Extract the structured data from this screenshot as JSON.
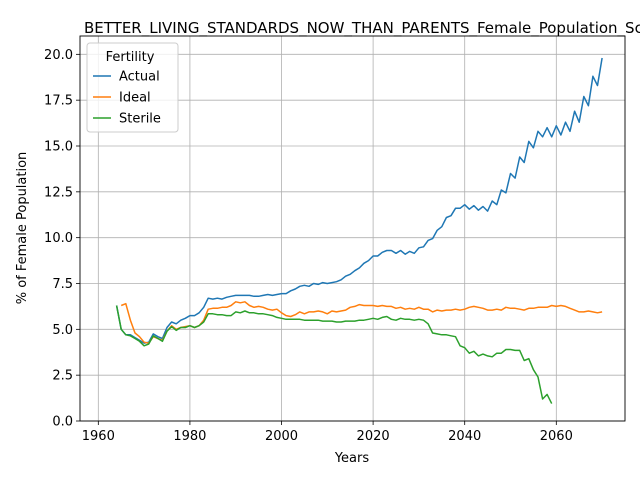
{
  "chart_data": {
    "type": "line",
    "title": "BETTER_LIVING_STANDARDS_NOW_THAN_PARENTS_Female_Population_Sco",
    "xlabel": "Years",
    "ylabel": "% of Female Population",
    "xlim": [
      1956,
      2075
    ],
    "ylim": [
      0,
      21
    ],
    "xticks": [
      1960,
      1980,
      2000,
      2020,
      2040,
      2060
    ],
    "yticks": [
      0.0,
      2.5,
      5.0,
      7.5,
      10.0,
      12.5,
      15.0,
      17.5,
      20.0
    ],
    "xtick_labels": [
      "1960",
      "1980",
      "2000",
      "2020",
      "2040",
      "2060"
    ],
    "ytick_labels": [
      "0.0",
      "2.5",
      "5.0",
      "7.5",
      "10.0",
      "12.5",
      "15.0",
      "17.5",
      "20.0"
    ],
    "grid": true,
    "legend": {
      "title": "Fertility",
      "placement": "upper left"
    },
    "series": [
      {
        "name": "Actual",
        "color": "#1f77b4",
        "x": [
          1964,
          1965,
          1966,
          1967,
          1968,
          1969,
          1970,
          1971,
          1972,
          1973,
          1974,
          1975,
          1976,
          1977,
          1978,
          1979,
          1980,
          1981,
          1982,
          1983,
          1984,
          1985,
          1986,
          1987,
          1988,
          1989,
          1990,
          1991,
          1992,
          1993,
          1994,
          1995,
          1996,
          1997,
          1998,
          1999,
          2000,
          2001,
          2002,
          2003,
          2004,
          2005,
          2006,
          2007,
          2008,
          2009,
          2010,
          2011,
          2012,
          2013,
          2014,
          2015,
          2016,
          2017,
          2018,
          2019,
          2020,
          2021,
          2022,
          2023,
          2024,
          2025,
          2026,
          2027,
          2028,
          2029,
          2030,
          2031,
          2032,
          2033,
          2034,
          2035,
          2036,
          2037,
          2038,
          2039,
          2040,
          2041,
          2042,
          2043,
          2044,
          2045,
          2046,
          2047,
          2048,
          2049,
          2050,
          2051,
          2052,
          2053,
          2054,
          2055,
          2056,
          2057,
          2058,
          2059,
          2060,
          2061,
          2062,
          2063,
          2064,
          2065,
          2066,
          2067,
          2068,
          2069,
          2070
        ],
        "y": [
          6.3,
          5.0,
          4.7,
          4.7,
          4.55,
          4.4,
          4.25,
          4.3,
          4.75,
          4.6,
          4.5,
          5.1,
          5.4,
          5.3,
          5.5,
          5.6,
          5.75,
          5.75,
          5.9,
          6.2,
          6.7,
          6.65,
          6.7,
          6.65,
          6.75,
          6.8,
          6.85,
          6.85,
          6.85,
          6.85,
          6.8,
          6.8,
          6.85,
          6.9,
          6.85,
          6.9,
          6.95,
          6.95,
          7.1,
          7.2,
          7.35,
          7.4,
          7.35,
          7.5,
          7.45,
          7.55,
          7.5,
          7.55,
          7.6,
          7.7,
          7.9,
          8.0,
          8.2,
          8.35,
          8.6,
          8.75,
          9.0,
          9.0,
          9.2,
          9.3,
          9.3,
          9.15,
          9.3,
          9.1,
          9.25,
          9.15,
          9.45,
          9.5,
          9.85,
          9.95,
          10.4,
          10.6,
          11.1,
          11.2,
          11.6,
          11.6,
          11.8,
          11.55,
          11.75,
          11.5,
          11.7,
          11.45,
          12.0,
          11.8,
          12.6,
          12.45,
          13.5,
          13.25,
          14.4,
          14.1,
          15.25,
          14.9,
          15.8,
          15.5,
          16.0,
          15.5,
          16.1,
          15.6,
          16.3,
          15.8,
          16.9,
          16.3,
          17.7,
          17.2,
          18.8,
          18.3,
          19.8
        ]
      },
      {
        "name": "Ideal",
        "color": "#ff7f0e",
        "x": [
          1965,
          1966,
          1967,
          1968,
          1969,
          1970,
          1971,
          1972,
          1973,
          1974,
          1975,
          1976,
          1977,
          1978,
          1979,
          1980,
          1981,
          1982,
          1983,
          1984,
          1985,
          1986,
          1987,
          1988,
          1989,
          1990,
          1991,
          1992,
          1993,
          1994,
          1995,
          1996,
          1997,
          1998,
          1999,
          2000,
          2001,
          2002,
          2003,
          2004,
          2005,
          2006,
          2007,
          2008,
          2009,
          2010,
          2011,
          2012,
          2013,
          2014,
          2015,
          2016,
          2017,
          2018,
          2019,
          2020,
          2021,
          2022,
          2023,
          2024,
          2025,
          2026,
          2027,
          2028,
          2029,
          2030,
          2031,
          2032,
          2033,
          2034,
          2035,
          2036,
          2037,
          2038,
          2039,
          2040,
          2041,
          2042,
          2043,
          2044,
          2045,
          2046,
          2047,
          2048,
          2049,
          2050,
          2051,
          2052,
          2053,
          2054,
          2055,
          2056,
          2057,
          2058,
          2059,
          2060,
          2061,
          2062,
          2063,
          2064,
          2065,
          2066,
          2067,
          2068,
          2069,
          2070
        ],
        "y": [
          6.3,
          6.4,
          5.5,
          4.8,
          4.6,
          4.3,
          4.25,
          4.6,
          4.5,
          4.4,
          4.9,
          5.2,
          5.0,
          5.1,
          5.15,
          5.2,
          5.1,
          5.2,
          5.5,
          6.1,
          6.15,
          6.15,
          6.2,
          6.2,
          6.3,
          6.5,
          6.45,
          6.5,
          6.3,
          6.2,
          6.25,
          6.2,
          6.1,
          6.05,
          6.1,
          5.9,
          5.75,
          5.7,
          5.8,
          5.95,
          5.85,
          5.95,
          5.95,
          6.0,
          5.95,
          5.85,
          6.0,
          5.95,
          6.0,
          6.05,
          6.2,
          6.25,
          6.35,
          6.3,
          6.3,
          6.3,
          6.25,
          6.3,
          6.25,
          6.25,
          6.15,
          6.2,
          6.1,
          6.15,
          6.1,
          6.2,
          6.1,
          6.1,
          5.95,
          6.05,
          6.0,
          6.05,
          6.05,
          6.1,
          6.05,
          6.1,
          6.2,
          6.25,
          6.2,
          6.15,
          6.05,
          6.05,
          6.1,
          6.05,
          6.2,
          6.15,
          6.15,
          6.1,
          6.05,
          6.15,
          6.15,
          6.2,
          6.2,
          6.2,
          6.3,
          6.25,
          6.3,
          6.25,
          6.15,
          6.05,
          5.95,
          5.95,
          6.0,
          5.95,
          5.9,
          5.95
        ]
      },
      {
        "name": "Sterile",
        "color": "#2ca02c",
        "x": [
          1964,
          1965,
          1966,
          1967,
          1968,
          1969,
          1970,
          1971,
          1972,
          1973,
          1974,
          1975,
          1976,
          1977,
          1978,
          1979,
          1980,
          1981,
          1982,
          1983,
          1984,
          1985,
          1986,
          1987,
          1988,
          1989,
          1990,
          1991,
          1992,
          1993,
          1994,
          1995,
          1996,
          1997,
          1998,
          1999,
          2000,
          2001,
          2002,
          2003,
          2004,
          2005,
          2006,
          2007,
          2008,
          2009,
          2010,
          2011,
          2012,
          2013,
          2014,
          2015,
          2016,
          2017,
          2018,
          2019,
          2020,
          2021,
          2022,
          2023,
          2024,
          2025,
          2026,
          2027,
          2028,
          2029,
          2030,
          2031,
          2032,
          2033,
          2034,
          2035,
          2036,
          2037,
          2038,
          2039,
          2040,
          2041,
          2042,
          2043,
          2044,
          2045,
          2046,
          2047,
          2048,
          2049,
          2050,
          2051,
          2052,
          2053,
          2054,
          2055,
          2056,
          2057,
          2058,
          2059
        ],
        "y": [
          6.3,
          5.0,
          4.7,
          4.65,
          4.5,
          4.35,
          4.1,
          4.2,
          4.65,
          4.5,
          4.35,
          4.9,
          5.15,
          4.95,
          5.1,
          5.1,
          5.2,
          5.1,
          5.2,
          5.4,
          5.85,
          5.85,
          5.8,
          5.8,
          5.75,
          5.75,
          5.95,
          5.9,
          6.0,
          5.9,
          5.9,
          5.85,
          5.85,
          5.8,
          5.75,
          5.65,
          5.6,
          5.55,
          5.55,
          5.55,
          5.55,
          5.5,
          5.5,
          5.5,
          5.5,
          5.45,
          5.45,
          5.45,
          5.4,
          5.4,
          5.45,
          5.45,
          5.45,
          5.5,
          5.5,
          5.55,
          5.6,
          5.55,
          5.65,
          5.7,
          5.55,
          5.5,
          5.6,
          5.55,
          5.55,
          5.5,
          5.55,
          5.5,
          5.3,
          4.8,
          4.75,
          4.7,
          4.7,
          4.65,
          4.6,
          4.1,
          4.0,
          3.7,
          3.8,
          3.55,
          3.65,
          3.55,
          3.5,
          3.7,
          3.7,
          3.9,
          3.9,
          3.85,
          3.85,
          3.3,
          3.4,
          2.8,
          2.4,
          1.2,
          1.45,
          0.95
        ]
      }
    ]
  }
}
